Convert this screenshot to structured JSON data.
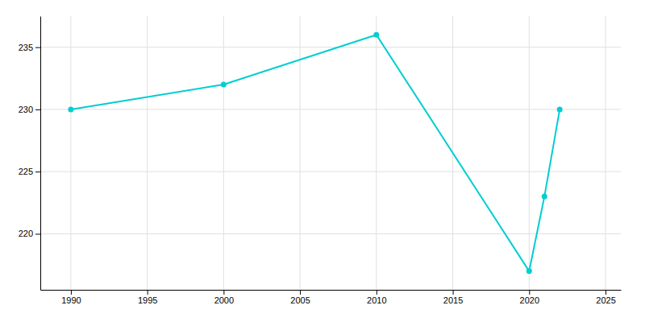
{
  "chart_data": {
    "type": "line",
    "x": [
      1990,
      2000,
      2010,
      2020,
      2021,
      2022
    ],
    "values": [
      230,
      232,
      236,
      217,
      223,
      230
    ],
    "color": "#00CED1",
    "marker": "circle",
    "xlim": [
      1988,
      2026
    ],
    "ylim": [
      215.5,
      237.5
    ],
    "xticks": [
      1990,
      1995,
      2000,
      2005,
      2010,
      2015,
      2020,
      2025
    ],
    "yticks": [
      220,
      225,
      230,
      235
    ],
    "grid": true
  }
}
